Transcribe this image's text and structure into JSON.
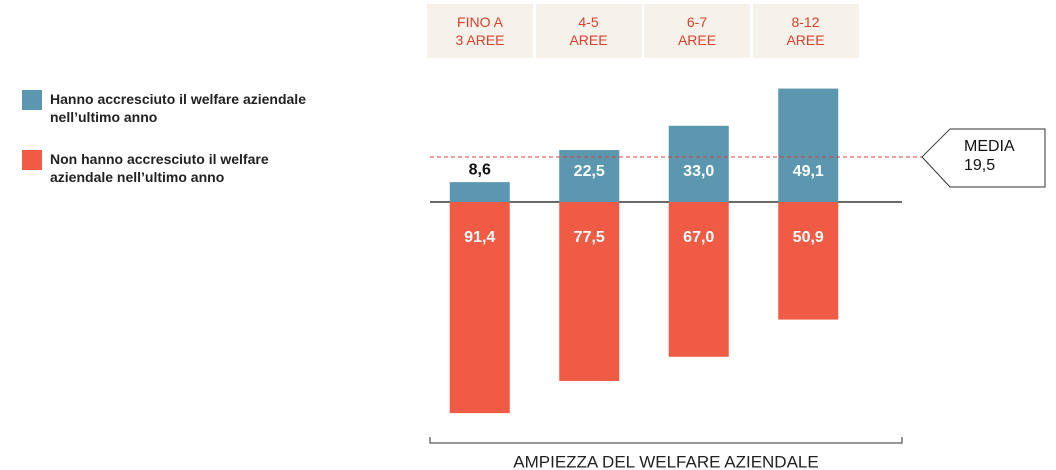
{
  "chart_data": {
    "type": "bar",
    "categories": [
      "FINO A 3 AREE",
      "4-5 AREE",
      "6-7 AREE",
      "8-12 AREE"
    ],
    "series": [
      {
        "name": "Hanno accresciuto il welfare aziendale nell’ultimo anno",
        "color": "#5b98b0",
        "values": [
          8.6,
          22.5,
          33.0,
          49.1
        ],
        "value_labels": [
          "8,6",
          "22,5",
          "33,0",
          "49,1"
        ]
      },
      {
        "name": "Non hanno accresciuto il welfare aziendale nell’ultimo anno",
        "color": "#ef5b44",
        "values": [
          91.4,
          77.5,
          67.0,
          50.9
        ],
        "value_labels": [
          "91,4",
          "77,5",
          "67,0",
          "50,9"
        ]
      }
    ],
    "reference": {
      "label": "MEDIA",
      "value": 19.5,
      "value_label": "19,5",
      "color": "#d9412f"
    },
    "xlabel": "AMPIEZZA DEL WELFARE AZIENDALE"
  }
}
